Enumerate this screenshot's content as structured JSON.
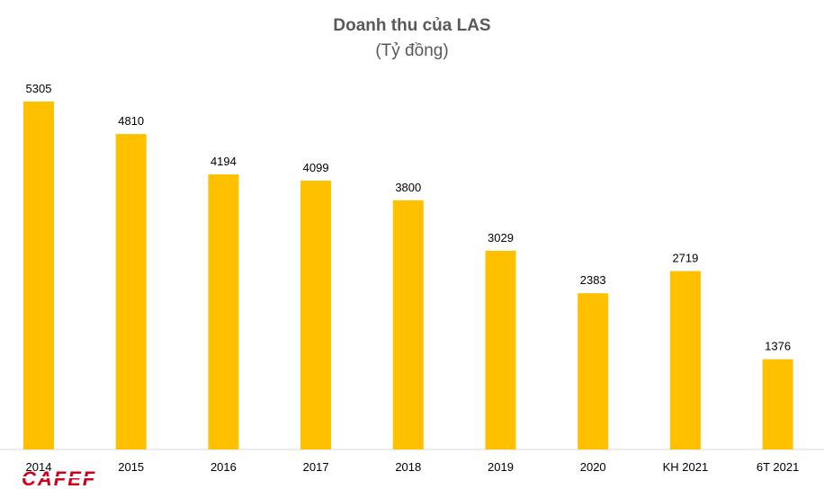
{
  "chart_data": {
    "type": "bar",
    "title": "Doanh thu của LAS",
    "subtitle": "(Tỷ đồng)",
    "categories": [
      "2014",
      "2015",
      "2016",
      "2017",
      "2018",
      "2019",
      "2020",
      "KH 2021",
      "6T 2021"
    ],
    "values": [
      5305,
      4810,
      4194,
      4099,
      3800,
      3029,
      2383,
      2719,
      1376
    ],
    "xlabel": "",
    "ylabel": "",
    "ylim": [
      0,
      5305
    ],
    "grid": false,
    "bar_color": "#FFC000"
  },
  "logo": {
    "text": "CAFEF",
    "color": "#d0021b"
  }
}
